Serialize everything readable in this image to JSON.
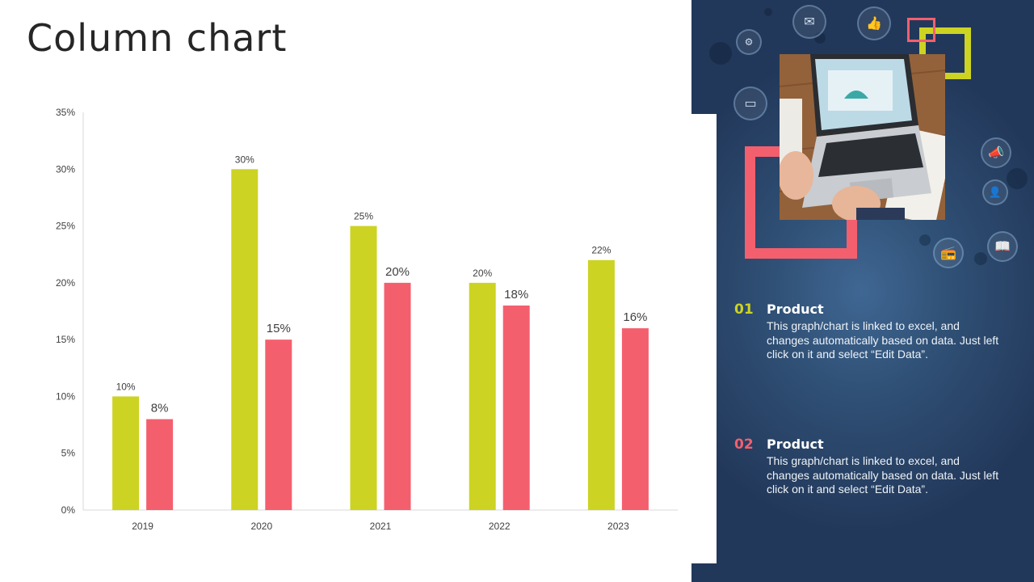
{
  "title": "Column chart",
  "colors": {
    "series1": "#cdd322",
    "series2": "#f45f6e",
    "panel": "#263f61",
    "accent_green": "#cdd322",
    "accent_pink": "#f45f6e"
  },
  "chart_data": {
    "type": "bar",
    "categories": [
      "2019",
      "2020",
      "2021",
      "2022",
      "2023"
    ],
    "series": [
      {
        "values": [
          10,
          30,
          25,
          20,
          22
        ],
        "labels": [
          "10%",
          "30%",
          "25%",
          "20%",
          "22%"
        ]
      },
      {
        "values": [
          8,
          15,
          20,
          18,
          16
        ],
        "labels": [
          "8%",
          "15%",
          "20%",
          "18%",
          "16%"
        ]
      }
    ],
    "yticks": [
      "0%",
      "5%",
      "10%",
      "15%",
      "20%",
      "25%",
      "30%",
      "35%"
    ],
    "ylim": [
      0,
      35
    ],
    "grid": false,
    "legend": "none"
  },
  "legend": [
    {
      "number": "01",
      "title": "Product",
      "text": "This graph/chart is linked to excel, and changes automatically based on data. Just left click on it and select “Edit Data”."
    },
    {
      "number": "02",
      "title": "Product",
      "text": "This graph/chart is linked to excel, and changes automatically based on data. Just left click on it and select “Edit Data”."
    }
  ],
  "icons": [
    "email-icon",
    "thumbs-up-icon",
    "gears-icon",
    "monitor-icon",
    "megaphone-icon",
    "user-icon",
    "book-icon",
    "radio-icon"
  ]
}
